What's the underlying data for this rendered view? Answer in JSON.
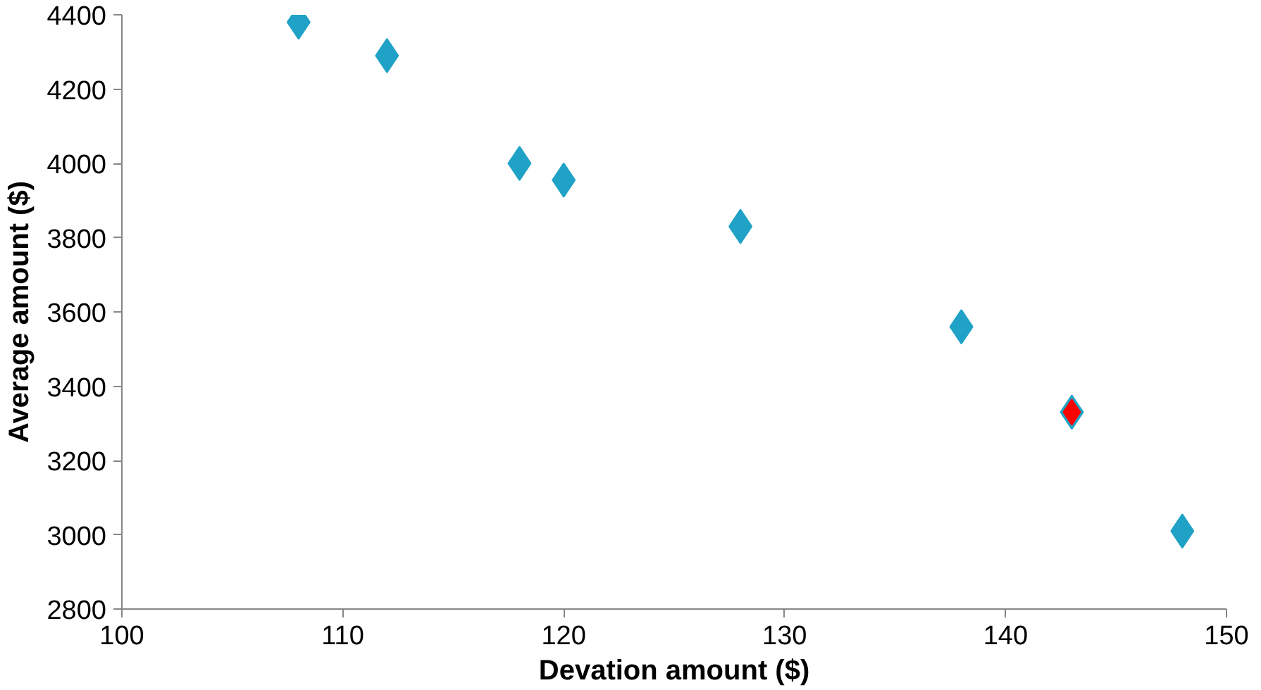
{
  "chart_data": {
    "type": "scatter",
    "xlabel": "Devation amount ($)",
    "ylabel": "Average amount ($)",
    "xlim": [
      100,
      150
    ],
    "xticks": [
      100,
      110,
      120,
      130,
      140,
      150
    ],
    "ylim": [
      2800,
      4400
    ],
    "yticks": [
      2800,
      3000,
      3200,
      3400,
      3600,
      3800,
      4000,
      4200,
      4400
    ],
    "grid": false,
    "marker": "diamond",
    "series": [
      {
        "color": "#1fa2c6",
        "x": [
          108,
          112,
          118,
          120,
          128,
          138,
          143,
          148
        ],
        "values": [
          4380,
          4290,
          4000,
          3955,
          3830,
          3560,
          3330,
          3010
        ]
      },
      {
        "color": "#ff0000",
        "x": [
          143
        ],
        "values": [
          3330
        ]
      }
    ]
  }
}
